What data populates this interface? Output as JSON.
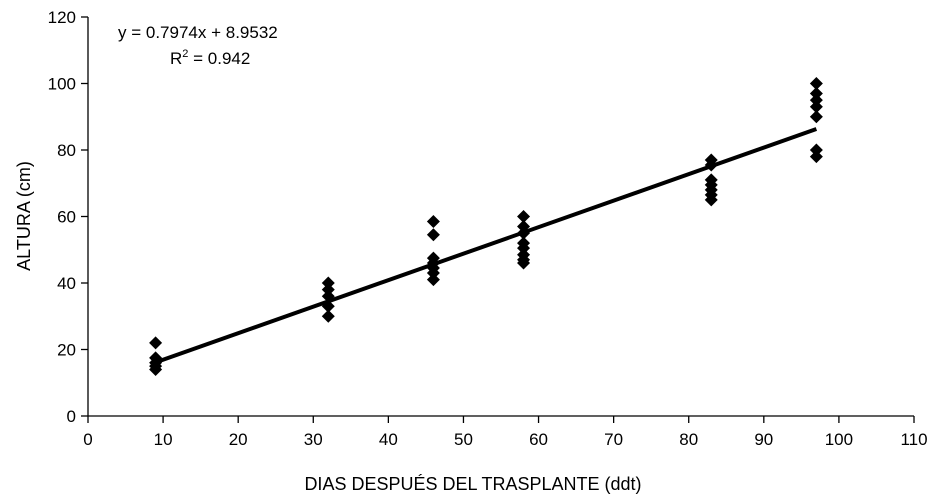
{
  "chart_data": {
    "type": "scatter",
    "title": "",
    "xlabel": "DIAS DESPUÉS DEL TRASPLANTE (ddt)",
    "ylabel": "ALTURA (cm)",
    "xlim": [
      0,
      110
    ],
    "ylim": [
      0,
      120
    ],
    "xticks": [
      "0",
      "10",
      "20",
      "30",
      "40",
      "50",
      "60",
      "70",
      "80",
      "90",
      "100",
      "110"
    ],
    "yticks": [
      "0",
      "20",
      "40",
      "60",
      "80",
      "100",
      "120"
    ],
    "grid": false,
    "legend": "none",
    "marker": "diamond",
    "marker_color": "#000000",
    "points": [
      [
        9,
        22
      ],
      [
        9,
        17.5
      ],
      [
        9,
        16
      ],
      [
        9,
        15
      ],
      [
        9,
        14
      ],
      [
        32,
        40
      ],
      [
        32,
        38
      ],
      [
        32,
        36
      ],
      [
        32,
        33
      ],
      [
        32,
        30
      ],
      [
        46,
        58.5
      ],
      [
        46,
        54.5
      ],
      [
        46,
        47.5
      ],
      [
        46,
        46
      ],
      [
        46,
        44.5
      ],
      [
        46,
        43
      ],
      [
        46,
        41
      ],
      [
        58,
        60
      ],
      [
        58,
        57
      ],
      [
        58,
        55
      ],
      [
        58,
        52
      ],
      [
        58,
        50.5
      ],
      [
        58,
        48.5
      ],
      [
        58,
        47
      ],
      [
        58,
        46
      ],
      [
        83,
        77
      ],
      [
        83,
        75.5
      ],
      [
        83,
        71
      ],
      [
        83,
        69.5
      ],
      [
        83,
        68
      ],
      [
        83,
        66.5
      ],
      [
        83,
        65
      ],
      [
        97,
        100
      ],
      [
        97,
        97
      ],
      [
        97,
        95
      ],
      [
        97,
        93
      ],
      [
        97,
        90
      ],
      [
        97,
        80
      ],
      [
        97,
        78
      ]
    ],
    "trendline": {
      "slope": 0.7974,
      "intercept": 8.9532,
      "x_range": [
        9,
        97
      ],
      "color": "#000000"
    },
    "annotations": {
      "equation": "y = 0.7974x + 8.9532",
      "r2_prefix": "R",
      "r2_sup": "2",
      "r2_value": " = 0.942"
    }
  }
}
